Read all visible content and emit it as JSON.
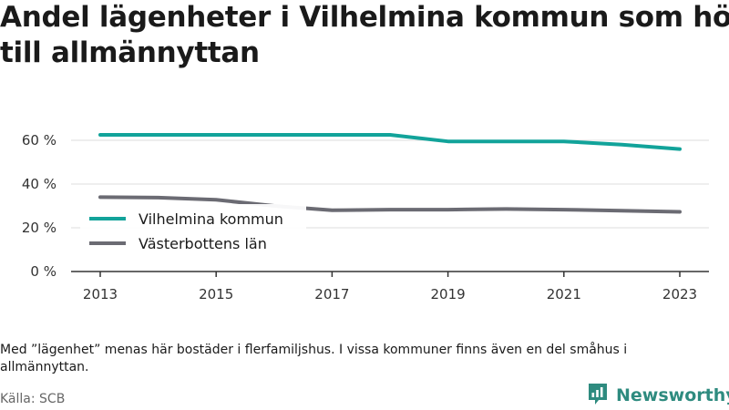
{
  "title_lines": [
    "Andel lägenheter i Vilhelmina kommun som hör",
    "till allmännyttan"
  ],
  "note": "Med ”lägenhet” menas här bostäder i flerfamiljshus. I vissa kommuner finns även en del småhus i allmännyttan.",
  "source": "Källa: SCB",
  "brand": {
    "name": "Newsworthy",
    "icon": "bar-chart-logo-icon",
    "color": "#2e8b7f"
  },
  "chart_data": {
    "type": "line",
    "x": [
      2013,
      2014,
      2015,
      2016,
      2017,
      2018,
      2019,
      2020,
      2021,
      2022,
      2023
    ],
    "x_ticks": [
      "2013",
      "2015",
      "2017",
      "2019",
      "2021",
      "2023"
    ],
    "y_ticks": [
      "0 %",
      "20 %",
      "40 %",
      "60 %"
    ],
    "ylim": [
      0,
      65
    ],
    "grid": true,
    "legend_position": "bottom-left",
    "series": [
      {
        "name": "Vilhelmina kommun",
        "color": "#12a39a",
        "values": [
          62.5,
          62.5,
          62.5,
          62.5,
          62.5,
          62.5,
          59.5,
          59.5,
          59.5,
          58.0,
          56.0
        ]
      },
      {
        "name": "Västerbottens län",
        "color": "#6b6b73",
        "values": [
          34.0,
          33.8,
          32.8,
          30.0,
          28.0,
          28.3,
          28.3,
          28.6,
          28.3,
          27.8,
          27.3
        ]
      }
    ]
  }
}
